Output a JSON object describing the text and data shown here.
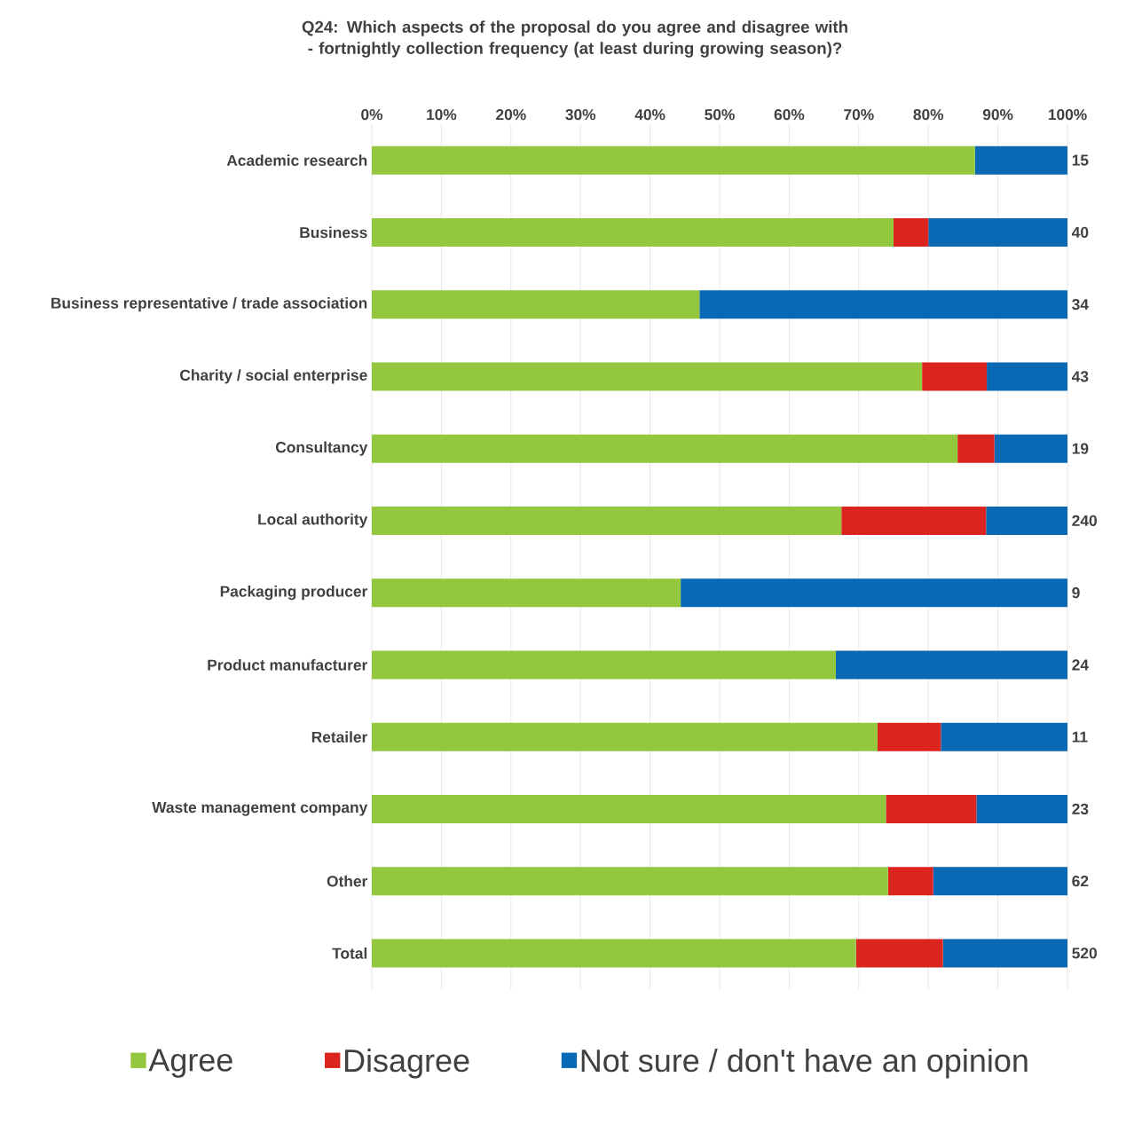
{
  "chart_data": {
    "type": "bar",
    "orientation": "horizontal",
    "stacked": true,
    "title": "Q24: Which aspects of the proposal do you agree and disagree with - fortnightly collection frequency (at least during growing season)?",
    "categories": [
      "Academic research",
      "Business",
      "Business representative / trade association",
      "Charity / social enterprise",
      "Consultancy",
      "Local authority",
      "Packaging producer",
      "Product manufacturer",
      "Retailer",
      "Waste management company",
      "Other",
      "Total"
    ],
    "series": [
      {
        "name": "Agree",
        "color": "#92c73e",
        "values": [
          86.7,
          75.0,
          47.1,
          79.1,
          84.2,
          67.5,
          44.4,
          66.7,
          72.7,
          73.9,
          74.2,
          69.6
        ]
      },
      {
        "name": "Disagree",
        "color": "#dc241f",
        "values": [
          0,
          5.0,
          0,
          9.3,
          5.3,
          20.8,
          0,
          0,
          9.1,
          13.0,
          6.5,
          12.5
        ]
      },
      {
        "name": "Not sure / don't have an opinion",
        "color": "#0a69b5",
        "values": [
          13.3,
          20.0,
          52.9,
          11.6,
          10.5,
          11.7,
          55.6,
          33.3,
          18.2,
          13.1,
          19.3,
          17.9
        ]
      }
    ],
    "annotations": [
      "15",
      "40",
      "34",
      "43",
      "19",
      "240",
      "9",
      "24",
      "11",
      "23",
      "62",
      "520"
    ],
    "xlim": [
      0,
      100
    ],
    "xticks": [
      {
        "value": 0,
        "label": "0%"
      },
      {
        "value": 10,
        "label": "10%"
      },
      {
        "value": 20,
        "label": "20%"
      },
      {
        "value": 30,
        "label": "30%"
      },
      {
        "value": 40,
        "label": "40%"
      },
      {
        "value": 50,
        "label": "50%"
      },
      {
        "value": 60,
        "label": "60%"
      },
      {
        "value": 70,
        "label": "70%"
      },
      {
        "value": 80,
        "label": "80%"
      },
      {
        "value": 90,
        "label": "90%"
      },
      {
        "value": 100,
        "label": "100%"
      }
    ],
    "grid": "x",
    "legend": "bottom"
  }
}
